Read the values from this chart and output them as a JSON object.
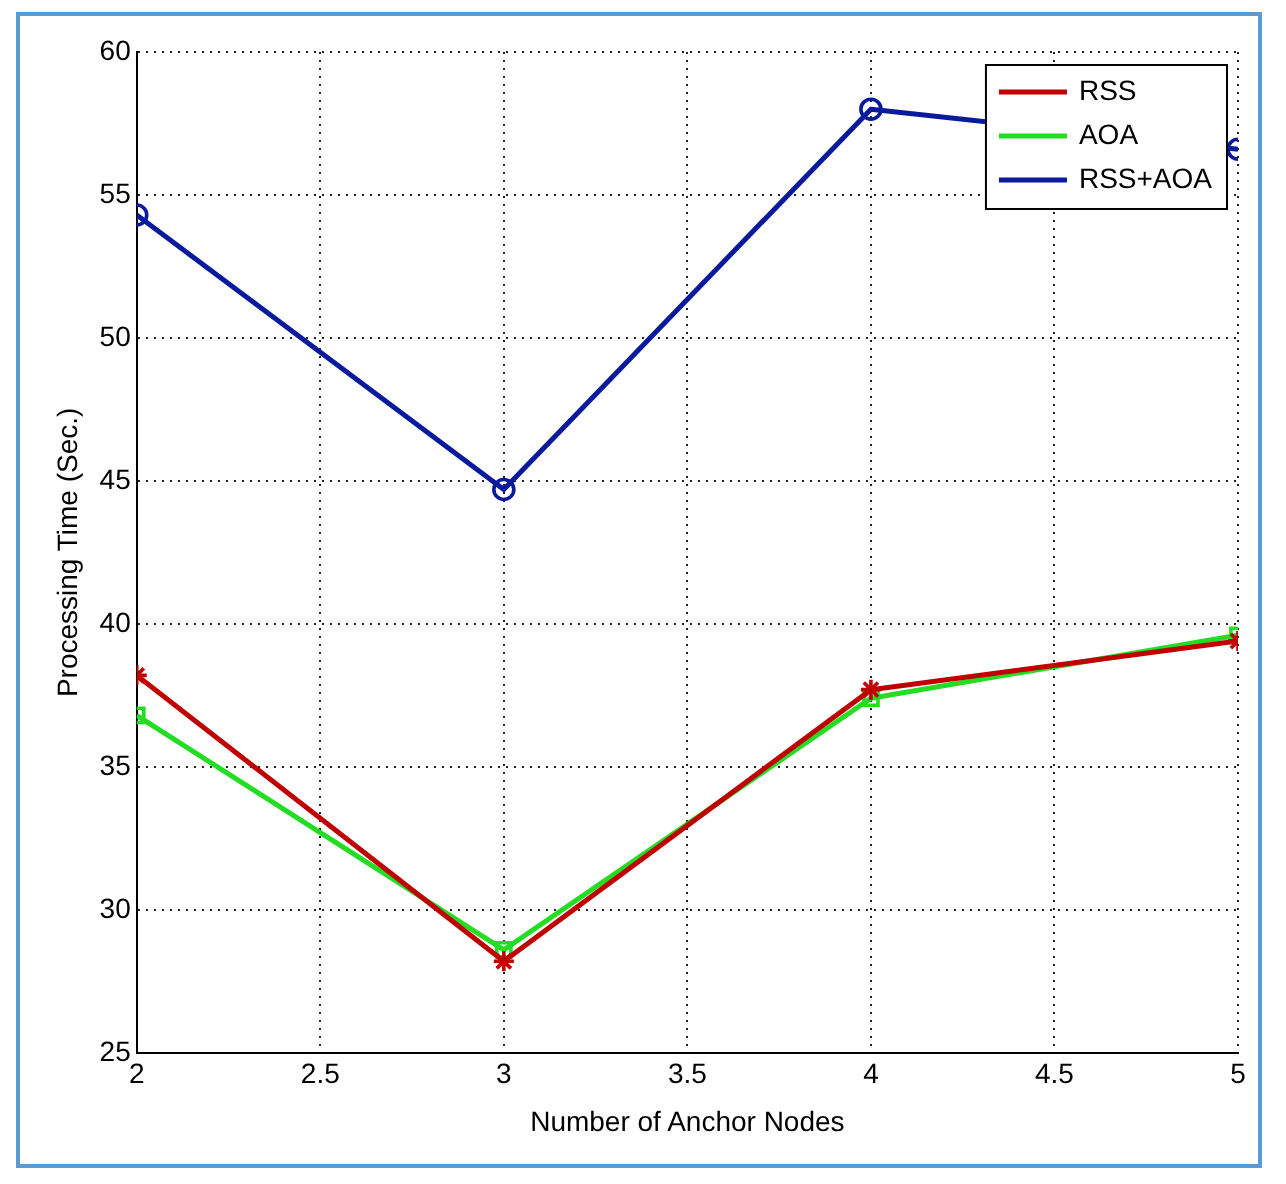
{
  "chart_data": {
    "type": "line",
    "xlabel": "Number of Anchor Nodes",
    "ylabel": "Processing Time (Sec.)",
    "x": [
      2,
      3,
      4,
      5
    ],
    "series": [
      {
        "name": "RSS",
        "color": "#c00000",
        "marker": "cross",
        "values": [
          38.2,
          28.2,
          37.7,
          39.4
        ]
      },
      {
        "name": "AOA",
        "color": "#22dd22",
        "marker": "square",
        "values": [
          36.8,
          28.6,
          37.4,
          39.6
        ]
      },
      {
        "name": "RSS+AOA",
        "color": "#0a1a9c",
        "marker": "circle",
        "values": [
          54.3,
          44.7,
          58.0,
          56.6
        ]
      }
    ],
    "xlim": [
      2,
      5
    ],
    "xticks": [
      2,
      2.5,
      3,
      3.5,
      4,
      4.5,
      5
    ],
    "ylim": [
      25,
      60
    ],
    "yticks": [
      25,
      30,
      35,
      40,
      45,
      50,
      55,
      60
    ],
    "grid": true,
    "legend": "top right",
    "line_style": "solid"
  }
}
